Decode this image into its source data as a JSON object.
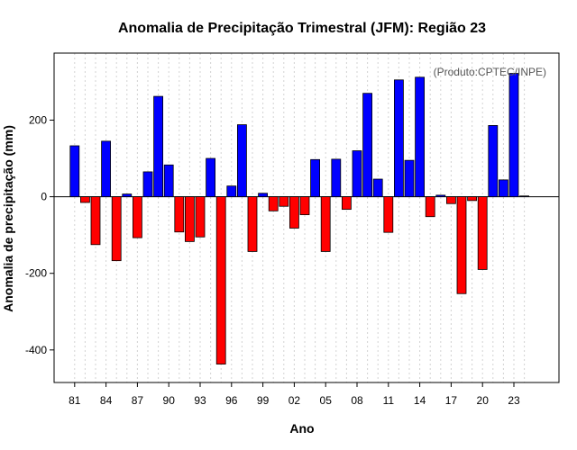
{
  "chart_data": {
    "type": "bar",
    "title": "Anomalia de Precipitação Trimestral (JFM): Região 23",
    "xlabel": "Ano",
    "ylabel": "Anomalia de precipitação (mm)",
    "credit": "(Produto:CPTEC/INPE)",
    "ylim": [
      -485,
      375
    ],
    "yticks": [
      -400,
      -200,
      0,
      200
    ],
    "xtick_labels": [
      "81",
      "84",
      "87",
      "90",
      "93",
      "96",
      "99",
      "02",
      "05",
      "08",
      "11",
      "14",
      "17",
      "20",
      "23"
    ],
    "grid": true,
    "positive_color": "#0000ff",
    "negative_color": "#ff0000",
    "categories": [
      "1981",
      "1982",
      "1983",
      "1984",
      "1985",
      "1986",
      "1987",
      "1988",
      "1989",
      "1990",
      "1991",
      "1992",
      "1993",
      "1994",
      "1995",
      "1996",
      "1997",
      "1998",
      "1999",
      "2000",
      "2001",
      "2002",
      "2003",
      "2004",
      "2005",
      "2006",
      "2007",
      "2008",
      "2009",
      "2010",
      "2011",
      "2012",
      "2013",
      "2014",
      "2015",
      "2016",
      "2017",
      "2018",
      "2019",
      "2020",
      "2021",
      "2022",
      "2023",
      "2024"
    ],
    "values": [
      133,
      -15,
      -125,
      145,
      -167,
      7,
      -107,
      65,
      262,
      83,
      -92,
      -117,
      -105,
      100,
      -437,
      28,
      188,
      -143,
      9,
      -37,
      -25,
      -82,
      -47,
      97,
      -143,
      98,
      -33,
      120,
      270,
      46,
      -93,
      305,
      95,
      312,
      -52,
      4,
      -18,
      -253,
      -10,
      -190,
      186,
      44,
      322,
      2
    ]
  }
}
